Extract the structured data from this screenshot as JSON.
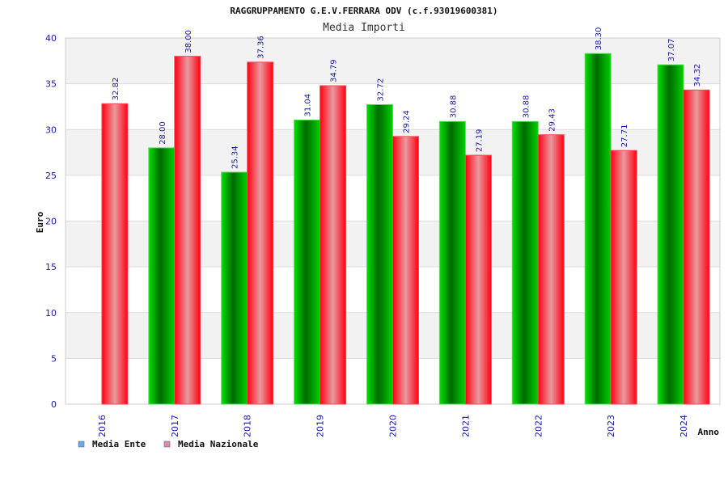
{
  "chart_data": {
    "type": "bar",
    "title": "RAGGRUPPAMENTO G.E.V.FERRARA ODV (c.f.93019600381)",
    "subtitle": "Media Importi",
    "xlabel": "Anno",
    "ylabel": "Euro",
    "ylim": [
      0,
      40
    ],
    "yticks": [
      0,
      5,
      10,
      15,
      20,
      25,
      30,
      35,
      40
    ],
    "grid": true,
    "legend_position": "bottom-left",
    "categories": [
      "2016",
      "2017",
      "2018",
      "2019",
      "2020",
      "2021",
      "2022",
      "2023",
      "2024"
    ],
    "series": [
      {
        "name": "Media Ente",
        "color": "#00c000",
        "legend_color": "#66aaee",
        "values": [
          null,
          28.0,
          25.34,
          31.04,
          32.72,
          30.88,
          30.88,
          38.3,
          37.07
        ],
        "labels": [
          "",
          "28.00",
          "25.34",
          "31.04",
          "32.72",
          "30.88",
          "30.88",
          "38.30",
          "37.07"
        ]
      },
      {
        "name": "Media Nazionale",
        "color": "#ff1020",
        "legend_color": "#dd88bb",
        "values": [
          32.82,
          38.0,
          37.36,
          34.79,
          29.24,
          27.19,
          29.43,
          27.71,
          34.32
        ],
        "labels": [
          "32.82",
          "38.00",
          "37.36",
          "34.79",
          "29.24",
          "27.19",
          "29.43",
          "27.71",
          "34.32"
        ]
      }
    ]
  }
}
